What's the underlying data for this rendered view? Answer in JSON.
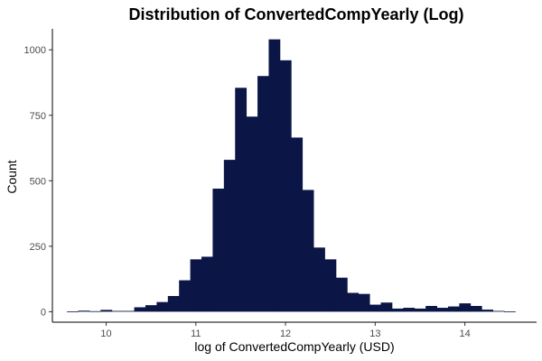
{
  "chart_data": {
    "type": "bar",
    "title": "Distribution of ConvertedCompYearly (Log)",
    "xlabel": "log of ConvertedCompYearly (USD)",
    "ylabel": "Count",
    "xlim": [
      9.4,
      14.8
    ],
    "ylim": [
      -40,
      1080
    ],
    "x_ticks": [
      10,
      11,
      12,
      13,
      14
    ],
    "y_ticks": [
      0,
      250,
      500,
      750,
      1000
    ],
    "bar_color": "#0b1647",
    "grid": false,
    "legend": "none",
    "bin_width": 0.125,
    "bin_centers": [
      9.625,
      9.75,
      9.875,
      10.0,
      10.125,
      10.25,
      10.375,
      10.5,
      10.625,
      10.75,
      10.875,
      11.0,
      11.125,
      11.25,
      11.375,
      11.5,
      11.625,
      11.75,
      11.875,
      12.0,
      12.125,
      12.25,
      12.375,
      12.5,
      12.625,
      12.75,
      12.875,
      13.0,
      13.125,
      13.25,
      13.375,
      13.5,
      13.625,
      13.75,
      13.875,
      14.0,
      14.125,
      14.25,
      14.375,
      14.5
    ],
    "counts": [
      1,
      4,
      2,
      7,
      3,
      3,
      17,
      25,
      37,
      60,
      120,
      200,
      210,
      470,
      580,
      855,
      745,
      900,
      1040,
      960,
      665,
      465,
      245,
      200,
      130,
      72,
      68,
      27,
      35,
      12,
      15,
      12,
      22,
      15,
      20,
      32,
      22,
      8,
      3,
      1
    ]
  }
}
